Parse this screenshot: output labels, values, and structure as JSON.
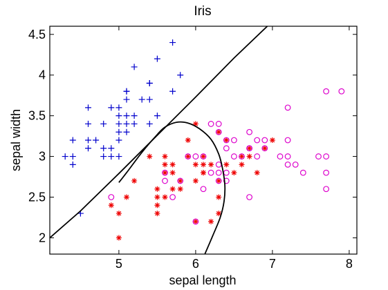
{
  "chart_data": {
    "type": "scatter",
    "title": "Iris",
    "xlabel": "sepal length",
    "ylabel": "sepal width",
    "xlim": [
      4.1,
      8.1
    ],
    "ylim": [
      1.8,
      4.6
    ],
    "xticks": [
      "5",
      "6",
      "7",
      "8"
    ],
    "yticks": [
      "2",
      "2.5",
      "3",
      "3.5",
      "4",
      "4.5"
    ],
    "grid": false,
    "series": [
      {
        "marker": "plus",
        "color": "#0000cc",
        "points": [
          [
            5.7,
            4.4
          ],
          [
            5.5,
            4.2
          ],
          [
            5.2,
            4.1
          ],
          [
            5.8,
            4.0
          ],
          [
            5.4,
            3.9
          ],
          [
            5.4,
            3.9
          ],
          [
            5.1,
            3.8
          ],
          [
            5.1,
            3.8
          ],
          [
            5.7,
            3.8
          ],
          [
            5.1,
            3.7
          ],
          [
            5.3,
            3.7
          ],
          [
            5.4,
            3.7
          ],
          [
            4.6,
            3.6
          ],
          [
            5.0,
            3.6
          ],
          [
            4.9,
            3.6
          ],
          [
            5.0,
            3.5
          ],
          [
            5.1,
            3.5
          ],
          [
            5.2,
            3.5
          ],
          [
            5.5,
            3.5
          ],
          [
            4.6,
            3.4
          ],
          [
            4.8,
            3.4
          ],
          [
            5.0,
            3.4
          ],
          [
            5.1,
            3.4
          ],
          [
            5.2,
            3.4
          ],
          [
            5.4,
            3.4
          ],
          [
            5.0,
            3.3
          ],
          [
            5.1,
            3.3
          ],
          [
            4.4,
            3.2
          ],
          [
            4.6,
            3.2
          ],
          [
            4.7,
            3.2
          ],
          [
            5.0,
            3.2
          ],
          [
            4.6,
            3.1
          ],
          [
            4.8,
            3.1
          ],
          [
            4.9,
            3.1
          ],
          [
            4.3,
            3.0
          ],
          [
            4.4,
            3.0
          ],
          [
            4.8,
            3.0
          ],
          [
            4.9,
            3.0
          ],
          [
            5.0,
            3.0
          ],
          [
            4.4,
            2.9
          ],
          [
            4.5,
            2.3
          ]
        ]
      },
      {
        "marker": "star",
        "color": "#ee0000",
        "points": [
          [
            5.9,
            3.2
          ],
          [
            6.3,
            3.3
          ],
          [
            6.0,
            3.4
          ],
          [
            6.4,
            3.2
          ],
          [
            6.7,
            3.1
          ],
          [
            6.9,
            3.1
          ],
          [
            7.0,
            3.2
          ],
          [
            6.6,
            3.0
          ],
          [
            5.4,
            3.0
          ],
          [
            5.6,
            3.0
          ],
          [
            5.9,
            3.0
          ],
          [
            6.1,
            3.0
          ],
          [
            6.7,
            3.0
          ],
          [
            6.8,
            2.8
          ],
          [
            5.6,
            2.9
          ],
          [
            5.7,
            2.9
          ],
          [
            6.0,
            2.9
          ],
          [
            6.1,
            2.9
          ],
          [
            6.2,
            2.9
          ],
          [
            6.4,
            2.9
          ],
          [
            6.6,
            2.9
          ],
          [
            5.2,
            2.7
          ],
          [
            5.8,
            2.7
          ],
          [
            6.0,
            2.7
          ],
          [
            6.3,
            2.7
          ],
          [
            5.6,
            2.8
          ],
          [
            5.7,
            2.8
          ],
          [
            6.1,
            2.8
          ],
          [
            6.5,
            2.8
          ],
          [
            6.1,
            2.8
          ],
          [
            5.5,
            2.6
          ],
          [
            5.8,
            2.6
          ],
          [
            5.5,
            2.5
          ],
          [
            5.1,
            2.5
          ],
          [
            5.6,
            2.5
          ],
          [
            6.3,
            2.5
          ],
          [
            4.9,
            2.4
          ],
          [
            5.5,
            2.4
          ],
          [
            5.5,
            2.3
          ],
          [
            5.0,
            2.3
          ],
          [
            6.3,
            2.3
          ],
          [
            6.2,
            2.2
          ],
          [
            6.0,
            2.2
          ],
          [
            5.7,
            2.6
          ],
          [
            5.0,
            2.0
          ]
        ]
      },
      {
        "marker": "circle",
        "color": "#dd00cc",
        "points": [
          [
            7.7,
            3.8
          ],
          [
            7.9,
            3.8
          ],
          [
            7.2,
            3.6
          ],
          [
            6.2,
            3.4
          ],
          [
            6.3,
            3.4
          ],
          [
            6.7,
            3.3
          ],
          [
            6.3,
            3.3
          ],
          [
            6.4,
            3.2
          ],
          [
            6.5,
            3.2
          ],
          [
            6.8,
            3.2
          ],
          [
            6.9,
            3.2
          ],
          [
            7.2,
            3.2
          ],
          [
            6.7,
            3.1
          ],
          [
            6.9,
            3.1
          ],
          [
            6.4,
            3.1
          ],
          [
            5.9,
            3.0
          ],
          [
            6.0,
            3.0
          ],
          [
            6.1,
            3.0
          ],
          [
            6.5,
            3.0
          ],
          [
            6.6,
            3.0
          ],
          [
            6.8,
            3.0
          ],
          [
            7.1,
            3.0
          ],
          [
            7.2,
            3.0
          ],
          [
            7.6,
            3.0
          ],
          [
            7.7,
            3.0
          ],
          [
            5.6,
            2.8
          ],
          [
            6.3,
            2.9
          ],
          [
            6.4,
            2.8
          ],
          [
            7.3,
            2.9
          ],
          [
            7.2,
            2.9
          ],
          [
            6.2,
            2.8
          ],
          [
            6.3,
            2.8
          ],
          [
            7.7,
            2.8
          ],
          [
            7.4,
            2.8
          ],
          [
            5.6,
            2.7
          ],
          [
            5.8,
            2.7
          ],
          [
            6.3,
            2.7
          ],
          [
            6.4,
            2.7
          ],
          [
            5.7,
            2.5
          ],
          [
            6.7,
            2.5
          ],
          [
            4.9,
            2.5
          ],
          [
            6.1,
            2.6
          ],
          [
            7.7,
            2.6
          ],
          [
            6.0,
            2.2
          ],
          [
            6.7,
            3.1
          ]
        ]
      }
    ],
    "boundaries": [
      {
        "color": "#000000",
        "points": [
          [
            4.1,
            2.0
          ],
          [
            4.5,
            2.33
          ],
          [
            5.0,
            2.79
          ],
          [
            5.5,
            3.26
          ],
          [
            6.0,
            3.73
          ],
          [
            6.5,
            4.21
          ],
          [
            7.0,
            4.66
          ]
        ]
      },
      {
        "color": "#000000",
        "points": [
          [
            5.0,
            2.68
          ],
          [
            5.1,
            2.8
          ],
          [
            5.3,
            3.05
          ],
          [
            5.5,
            3.27
          ],
          [
            5.6,
            3.36
          ],
          [
            5.75,
            3.42
          ],
          [
            5.9,
            3.41
          ],
          [
            6.05,
            3.34
          ],
          [
            6.2,
            3.21
          ],
          [
            6.3,
            3.03
          ],
          [
            6.35,
            2.85
          ],
          [
            6.38,
            2.65
          ],
          [
            6.37,
            2.45
          ],
          [
            6.32,
            2.25
          ],
          [
            6.22,
            2.02
          ],
          [
            6.12,
            1.8
          ]
        ]
      }
    ]
  }
}
